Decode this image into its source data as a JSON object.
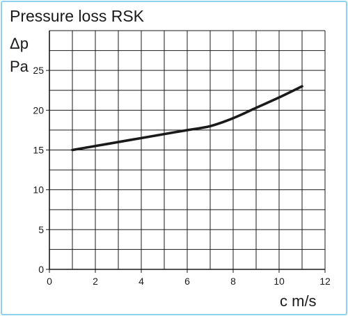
{
  "chart_data": {
    "type": "line",
    "title": "Pressure loss RSK",
    "ylabel_symbol": "Δp",
    "ylabel_unit": "Pa",
    "xlabel": "c m/s",
    "xlim": [
      0,
      12
    ],
    "ylim": [
      0,
      30
    ],
    "x_ticks": [
      0,
      2,
      4,
      6,
      8,
      10,
      12
    ],
    "y_ticks": [
      0,
      5,
      10,
      15,
      20,
      25
    ],
    "grid": true,
    "x_grid_step": 1,
    "y_grid_step": 2.5,
    "series": [
      {
        "x": [
          1,
          2,
          3,
          4,
          5,
          6,
          7,
          8,
          9,
          10,
          11
        ],
        "values": [
          15.0,
          15.5,
          16.0,
          16.5,
          17.0,
          17.5,
          18.0,
          19.0,
          20.3,
          21.6,
          23.0
        ],
        "color": "#1a1a1a"
      }
    ]
  }
}
